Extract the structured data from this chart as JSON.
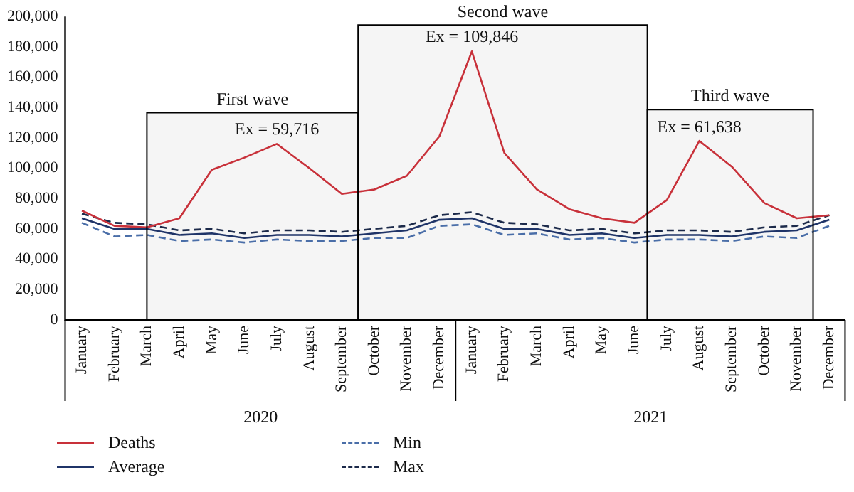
{
  "chart_data": {
    "type": "line",
    "x": [
      "2020-01",
      "2020-02",
      "2020-03",
      "2020-04",
      "2020-05",
      "2020-06",
      "2020-07",
      "2020-08",
      "2020-09",
      "2020-10",
      "2020-11",
      "2020-12",
      "2021-01",
      "2021-02",
      "2021-03",
      "2021-04",
      "2021-05",
      "2021-06",
      "2021-07",
      "2021-08",
      "2021-09",
      "2021-10",
      "2021-11",
      "2021-12"
    ],
    "series": [
      {
        "name": "Deaths",
        "color": "#c8313a",
        "line_style": "solid",
        "values": [
          72000,
          62000,
          61000,
          67000,
          99000,
          107000,
          116000,
          100000,
          83000,
          86000,
          95000,
          121000,
          177000,
          110000,
          86000,
          73000,
          67000,
          64000,
          79000,
          118000,
          101000,
          77000,
          67000,
          69000
        ]
      },
      {
        "name": "Average",
        "color": "#1f3468",
        "line_style": "solid",
        "values": [
          67000,
          60000,
          60000,
          56000,
          57000,
          54000,
          56000,
          56000,
          55000,
          57000,
          59000,
          66000,
          67000,
          60000,
          60000,
          56000,
          57000,
          54000,
          56000,
          56000,
          55000,
          58000,
          59000,
          66000
        ]
      },
      {
        "name": "Min",
        "color": "#4a6ea8",
        "line_style": "dashed",
        "values": [
          64000,
          55000,
          56000,
          52000,
          53000,
          51000,
          53000,
          52000,
          52000,
          54000,
          54000,
          62000,
          63000,
          56000,
          57000,
          53000,
          54000,
          51000,
          53000,
          53000,
          52000,
          55000,
          54000,
          62000
        ]
      },
      {
        "name": "Max",
        "color": "#1c2a4a",
        "line_style": "dashed",
        "values": [
          70000,
          64000,
          63000,
          59000,
          60000,
          57000,
          59000,
          59000,
          58000,
          60000,
          62000,
          69000,
          71000,
          64000,
          63000,
          59000,
          60000,
          57000,
          59000,
          59000,
          58000,
          61000,
          62000,
          69000
        ]
      }
    ],
    "xlim": [
      "2019-12-16",
      "2021-12-16"
    ],
    "xticks": [
      {
        "value": "2020-01",
        "label": "January"
      },
      {
        "value": "2020-02",
        "label": "February"
      },
      {
        "value": "2020-03",
        "label": "March"
      },
      {
        "value": "2020-04",
        "label": "April"
      },
      {
        "value": "2020-05",
        "label": "May"
      },
      {
        "value": "2020-06",
        "label": "June"
      },
      {
        "value": "2020-07",
        "label": "July"
      },
      {
        "value": "2020-08",
        "label": "August"
      },
      {
        "value": "2020-09",
        "label": "September"
      },
      {
        "value": "2020-10",
        "label": "October"
      },
      {
        "value": "2020-11",
        "label": "November"
      },
      {
        "value": "2020-12",
        "label": "December"
      },
      {
        "value": "2021-01",
        "label": "January"
      },
      {
        "value": "2021-02",
        "label": "February"
      },
      {
        "value": "2021-03",
        "label": "March"
      },
      {
        "value": "2021-04",
        "label": "April"
      },
      {
        "value": "2021-05",
        "label": "May"
      },
      {
        "value": "2021-06",
        "label": "June"
      },
      {
        "value": "2021-07",
        "label": "July"
      },
      {
        "value": "2021-08",
        "label": "August"
      },
      {
        "value": "2021-09",
        "label": "September"
      },
      {
        "value": "2021-10",
        "label": "October"
      },
      {
        "value": "2021-11",
        "label": "November"
      },
      {
        "value": "2021-12",
        "label": "December"
      }
    ],
    "ylim": [
      0,
      200000
    ],
    "yticks": [
      {
        "value": 0,
        "label": "0"
      },
      {
        "value": 20000,
        "label": "20,000"
      },
      {
        "value": 40000,
        "label": "40,000"
      },
      {
        "value": 60000,
        "label": "60,000"
      },
      {
        "value": 80000,
        "label": "80,000"
      },
      {
        "value": 100000,
        "label": "100,000"
      },
      {
        "value": 120000,
        "label": "120,000"
      },
      {
        "value": 140000,
        "label": "140,000"
      },
      {
        "value": 160000,
        "label": "160,000"
      },
      {
        "value": 180000,
        "label": "180,000"
      },
      {
        "value": 200000,
        "label": "200,000"
      }
    ],
    "bands": [
      {
        "axis": "x",
        "from": "2020-03",
        "to": "2020-09-16",
        "label": "First wave",
        "color": "#f5f5f5"
      },
      {
        "axis": "x",
        "from": "2020-09-16",
        "to": "2021-06-13",
        "label": "Second wave",
        "color": "#f5f5f5"
      },
      {
        "axis": "x",
        "from": "2021-06-13",
        "to": "2021-11-16",
        "label": "Third wave",
        "color": "#f5f5f5"
      }
    ],
    "annotations": [
      {
        "text": "Ex = 59,716",
        "x": "2020-07",
        "y": 116000
      },
      {
        "text": "Ex = 109,846",
        "x": "2021-01",
        "y": 177000
      },
      {
        "text": "Ex = 61,638",
        "x": "2021-08",
        "y": 117500
      },
      "2020",
      "2021"
    ],
    "grid": false,
    "legend": "bottom",
    "marker": "none"
  }
}
